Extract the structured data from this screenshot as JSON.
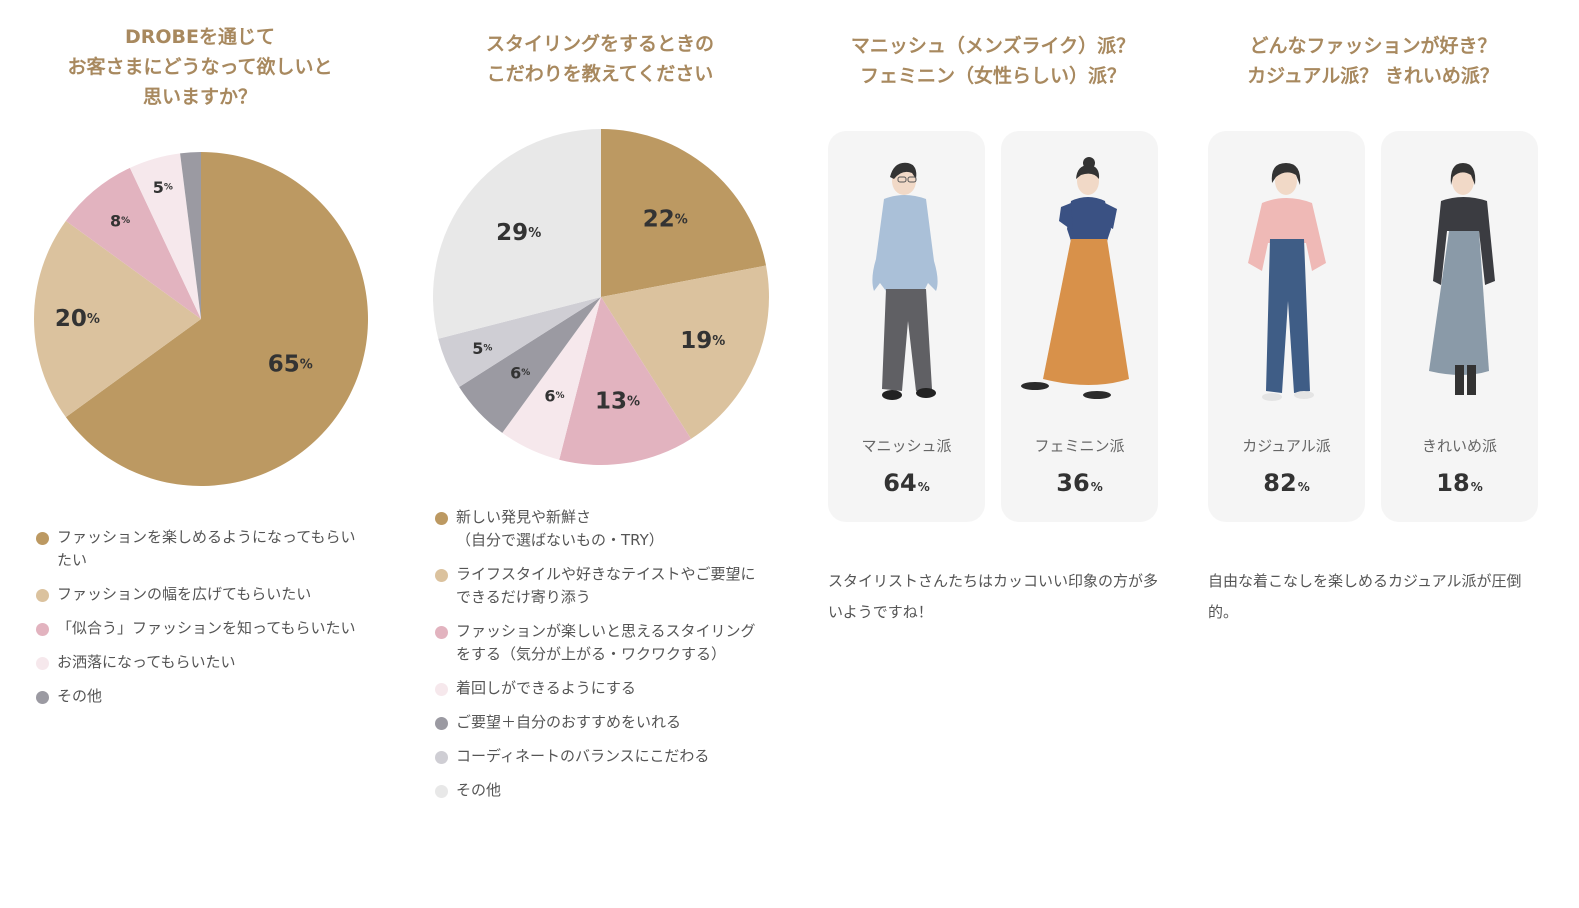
{
  "chart_data": [
    {
      "type": "pie",
      "title": "DROBEを通じて\nお客さまにどうなって欲しいと\n思いますか？",
      "slices": [
        {
          "label": "ファッションを楽しめるようになってもらいたい",
          "value": 65,
          "color": "#bc9962"
        },
        {
          "label": "ファッションの幅を広げてもらいたい",
          "value": 20,
          "color": "#dbc29e"
        },
        {
          "label": "「似合う」ファッションを知ってもらいたい",
          "value": 8,
          "color": "#e2b3bf"
        },
        {
          "label": "お洒落になってもらいたい",
          "value": 5,
          "color": "#f6e8ec"
        },
        {
          "label": "その他",
          "value": 2,
          "color": "#9b9aa2"
        }
      ],
      "pct_labels": [
        "65",
        "20",
        "8",
        "5",
        ""
      ]
    },
    {
      "type": "pie",
      "title": "スタイリングをするときの\nこだわりを教えてください",
      "slices": [
        {
          "label": "新しい発見や新鮮さ\n（自分で選ばないもの・TRY）",
          "value": 22,
          "color": "#bc9962"
        },
        {
          "label": "ライフスタイルや好きなテイストやご要望にできるだけ寄り添う",
          "value": 19,
          "color": "#dbc29e"
        },
        {
          "label": "ファッションが楽しいと思えるスタイリングをする（気分が上がる・ワクワクする）",
          "value": 13,
          "color": "#e2b3bf"
        },
        {
          "label": "着回しができるようにする",
          "value": 6,
          "color": "#f6e8ec"
        },
        {
          "label": "ご要望＋自分のおすすめをいれる",
          "value": 6,
          "color": "#9b9aa2"
        },
        {
          "label": "コーディネートのバランスにこだわる",
          "value": 5,
          "color": "#cfced4"
        },
        {
          "label": "その他",
          "value": 29,
          "color": "#e8e8e8"
        }
      ],
      "pct_labels": [
        "22",
        "19",
        "13",
        "6",
        "6",
        "5",
        "29"
      ]
    }
  ],
  "pct_unit": "%",
  "comparisons": [
    {
      "title": "マニッシュ（メンズライク）派？\nフェミニン（女性らしい）派？",
      "options": [
        {
          "label": "マニッシュ派",
          "value": "64",
          "figure": "manish-figure"
        },
        {
          "label": "フェミニン派",
          "value": "36",
          "figure": "feminine-figure"
        }
      ],
      "note": "スタイリストさんたちはカッコいい印象の方が多いようですね！"
    },
    {
      "title": "どんなファッションが好き？\nカジュアル派？ きれいめ派？",
      "options": [
        {
          "label": "カジュアル派",
          "value": "82",
          "figure": "casual-figure"
        },
        {
          "label": "きれいめ派",
          "value": "18",
          "figure": "kireime-figure"
        }
      ],
      "note": "自由な着こなしを楽しめるカジュアル派が圧倒的。"
    }
  ]
}
